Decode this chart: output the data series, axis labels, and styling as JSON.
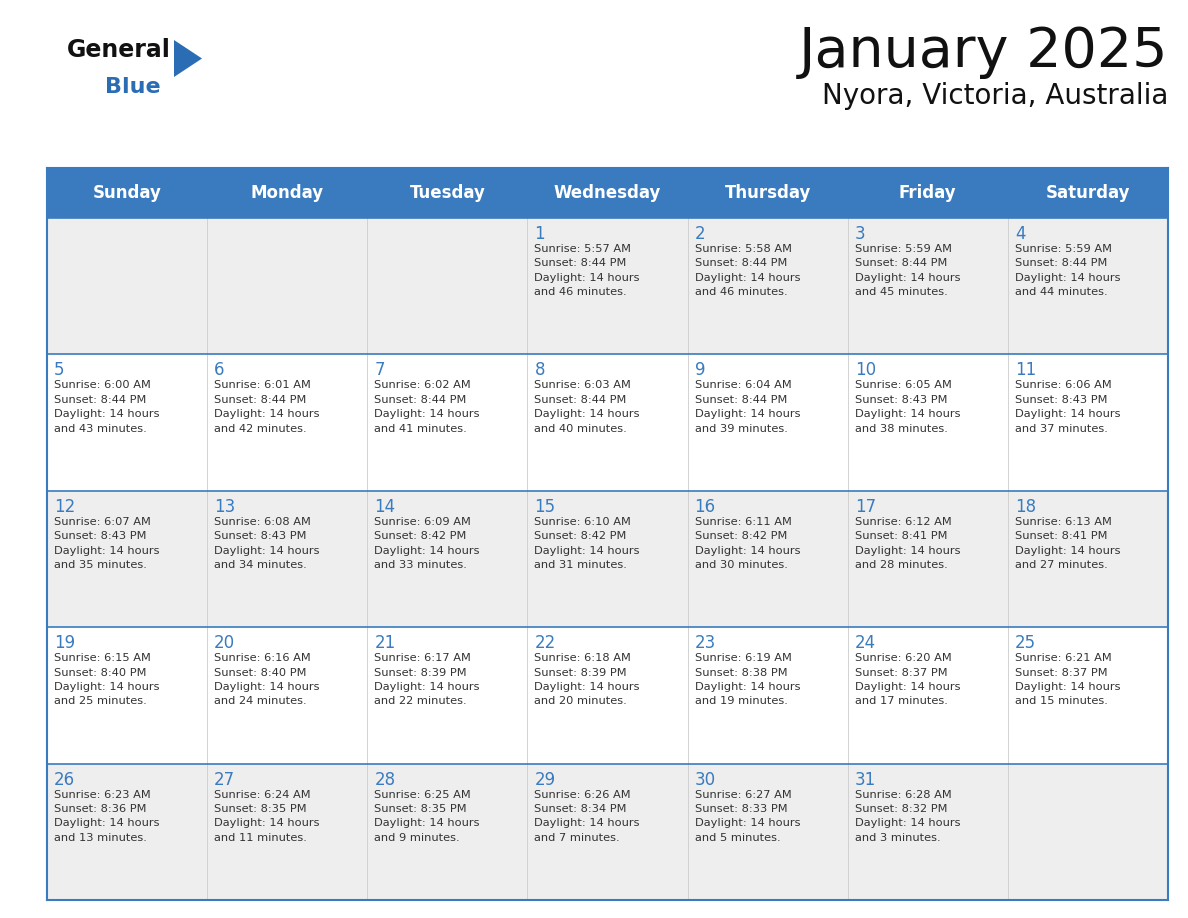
{
  "title": "January 2025",
  "subtitle": "Nyora, Victoria, Australia",
  "header_bg_color": "#3a7bbf",
  "header_text_color": "#ffffff",
  "row_bg_odd": "#eeeeee",
  "row_bg_even": "#ffffff",
  "grid_line_color": "#3a7bbf",
  "day_number_color": "#3a7bbf",
  "cell_text_color": "#333333",
  "title_color": "#111111",
  "days_of_week": [
    "Sunday",
    "Monday",
    "Tuesday",
    "Wednesday",
    "Thursday",
    "Friday",
    "Saturday"
  ],
  "logo_general_color": "#111111",
  "logo_blue_color": "#2a6db5",
  "logo_triangle_color": "#2a6db5",
  "weeks": [
    [
      {
        "day": "",
        "sunrise": "",
        "sunset": "",
        "daylight": ""
      },
      {
        "day": "",
        "sunrise": "",
        "sunset": "",
        "daylight": ""
      },
      {
        "day": "",
        "sunrise": "",
        "sunset": "",
        "daylight": ""
      },
      {
        "day": "1",
        "sunrise": "Sunrise: 5:57 AM",
        "sunset": "Sunset: 8:44 PM",
        "daylight": "Daylight: 14 hours\nand 46 minutes."
      },
      {
        "day": "2",
        "sunrise": "Sunrise: 5:58 AM",
        "sunset": "Sunset: 8:44 PM",
        "daylight": "Daylight: 14 hours\nand 46 minutes."
      },
      {
        "day": "3",
        "sunrise": "Sunrise: 5:59 AM",
        "sunset": "Sunset: 8:44 PM",
        "daylight": "Daylight: 14 hours\nand 45 minutes."
      },
      {
        "day": "4",
        "sunrise": "Sunrise: 5:59 AM",
        "sunset": "Sunset: 8:44 PM",
        "daylight": "Daylight: 14 hours\nand 44 minutes."
      }
    ],
    [
      {
        "day": "5",
        "sunrise": "Sunrise: 6:00 AM",
        "sunset": "Sunset: 8:44 PM",
        "daylight": "Daylight: 14 hours\nand 43 minutes."
      },
      {
        "day": "6",
        "sunrise": "Sunrise: 6:01 AM",
        "sunset": "Sunset: 8:44 PM",
        "daylight": "Daylight: 14 hours\nand 42 minutes."
      },
      {
        "day": "7",
        "sunrise": "Sunrise: 6:02 AM",
        "sunset": "Sunset: 8:44 PM",
        "daylight": "Daylight: 14 hours\nand 41 minutes."
      },
      {
        "day": "8",
        "sunrise": "Sunrise: 6:03 AM",
        "sunset": "Sunset: 8:44 PM",
        "daylight": "Daylight: 14 hours\nand 40 minutes."
      },
      {
        "day": "9",
        "sunrise": "Sunrise: 6:04 AM",
        "sunset": "Sunset: 8:44 PM",
        "daylight": "Daylight: 14 hours\nand 39 minutes."
      },
      {
        "day": "10",
        "sunrise": "Sunrise: 6:05 AM",
        "sunset": "Sunset: 8:43 PM",
        "daylight": "Daylight: 14 hours\nand 38 minutes."
      },
      {
        "day": "11",
        "sunrise": "Sunrise: 6:06 AM",
        "sunset": "Sunset: 8:43 PM",
        "daylight": "Daylight: 14 hours\nand 37 minutes."
      }
    ],
    [
      {
        "day": "12",
        "sunrise": "Sunrise: 6:07 AM",
        "sunset": "Sunset: 8:43 PM",
        "daylight": "Daylight: 14 hours\nand 35 minutes."
      },
      {
        "day": "13",
        "sunrise": "Sunrise: 6:08 AM",
        "sunset": "Sunset: 8:43 PM",
        "daylight": "Daylight: 14 hours\nand 34 minutes."
      },
      {
        "day": "14",
        "sunrise": "Sunrise: 6:09 AM",
        "sunset": "Sunset: 8:42 PM",
        "daylight": "Daylight: 14 hours\nand 33 minutes."
      },
      {
        "day": "15",
        "sunrise": "Sunrise: 6:10 AM",
        "sunset": "Sunset: 8:42 PM",
        "daylight": "Daylight: 14 hours\nand 31 minutes."
      },
      {
        "day": "16",
        "sunrise": "Sunrise: 6:11 AM",
        "sunset": "Sunset: 8:42 PM",
        "daylight": "Daylight: 14 hours\nand 30 minutes."
      },
      {
        "day": "17",
        "sunrise": "Sunrise: 6:12 AM",
        "sunset": "Sunset: 8:41 PM",
        "daylight": "Daylight: 14 hours\nand 28 minutes."
      },
      {
        "day": "18",
        "sunrise": "Sunrise: 6:13 AM",
        "sunset": "Sunset: 8:41 PM",
        "daylight": "Daylight: 14 hours\nand 27 minutes."
      }
    ],
    [
      {
        "day": "19",
        "sunrise": "Sunrise: 6:15 AM",
        "sunset": "Sunset: 8:40 PM",
        "daylight": "Daylight: 14 hours\nand 25 minutes."
      },
      {
        "day": "20",
        "sunrise": "Sunrise: 6:16 AM",
        "sunset": "Sunset: 8:40 PM",
        "daylight": "Daylight: 14 hours\nand 24 minutes."
      },
      {
        "day": "21",
        "sunrise": "Sunrise: 6:17 AM",
        "sunset": "Sunset: 8:39 PM",
        "daylight": "Daylight: 14 hours\nand 22 minutes."
      },
      {
        "day": "22",
        "sunrise": "Sunrise: 6:18 AM",
        "sunset": "Sunset: 8:39 PM",
        "daylight": "Daylight: 14 hours\nand 20 minutes."
      },
      {
        "day": "23",
        "sunrise": "Sunrise: 6:19 AM",
        "sunset": "Sunset: 8:38 PM",
        "daylight": "Daylight: 14 hours\nand 19 minutes."
      },
      {
        "day": "24",
        "sunrise": "Sunrise: 6:20 AM",
        "sunset": "Sunset: 8:37 PM",
        "daylight": "Daylight: 14 hours\nand 17 minutes."
      },
      {
        "day": "25",
        "sunrise": "Sunrise: 6:21 AM",
        "sunset": "Sunset: 8:37 PM",
        "daylight": "Daylight: 14 hours\nand 15 minutes."
      }
    ],
    [
      {
        "day": "26",
        "sunrise": "Sunrise: 6:23 AM",
        "sunset": "Sunset: 8:36 PM",
        "daylight": "Daylight: 14 hours\nand 13 minutes."
      },
      {
        "day": "27",
        "sunrise": "Sunrise: 6:24 AM",
        "sunset": "Sunset: 8:35 PM",
        "daylight": "Daylight: 14 hours\nand 11 minutes."
      },
      {
        "day": "28",
        "sunrise": "Sunrise: 6:25 AM",
        "sunset": "Sunset: 8:35 PM",
        "daylight": "Daylight: 14 hours\nand 9 minutes."
      },
      {
        "day": "29",
        "sunrise": "Sunrise: 6:26 AM",
        "sunset": "Sunset: 8:34 PM",
        "daylight": "Daylight: 14 hours\nand 7 minutes."
      },
      {
        "day": "30",
        "sunrise": "Sunrise: 6:27 AM",
        "sunset": "Sunset: 8:33 PM",
        "daylight": "Daylight: 14 hours\nand 5 minutes."
      },
      {
        "day": "31",
        "sunrise": "Sunrise: 6:28 AM",
        "sunset": "Sunset: 8:32 PM",
        "daylight": "Daylight: 14 hours\nand 3 minutes."
      },
      {
        "day": "",
        "sunrise": "",
        "sunset": "",
        "daylight": ""
      }
    ]
  ]
}
